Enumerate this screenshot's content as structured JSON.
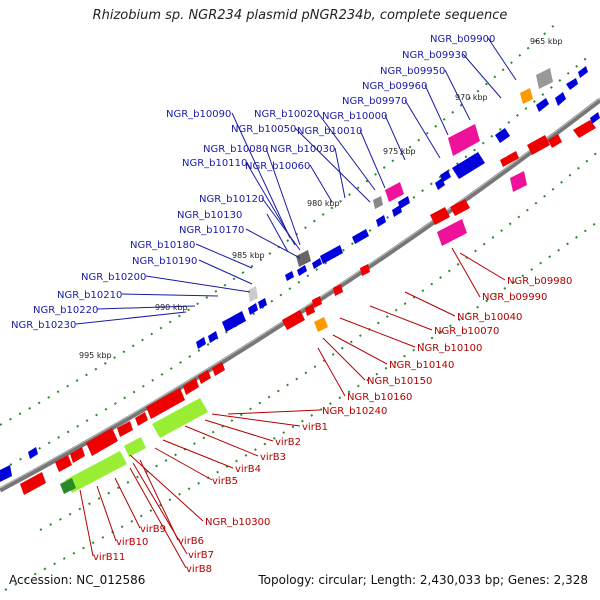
{
  "title": "Rhizobium sp. NGR234 plasmid pNGR234b, complete sequence",
  "footer": {
    "accession": "Accession: NC_012586",
    "summary": "Topology: circular; Length: 2,430,033 bp; Genes: 2,328"
  },
  "scale_ticks": [
    "965 kbp",
    "970 kbp",
    "975 kbp",
    "980 kbp",
    "985 kbp",
    "990 kbp",
    "995 kbp"
  ],
  "upper_labels": [
    "NGR_b09900",
    "NGR_b09930",
    "NGR_b09950",
    "NGR_b09960",
    "NGR_b09970",
    "NGR_b10000",
    "NGR_b10010",
    "NGR_b10020",
    "NGR_b10090",
    "NGR_b10050",
    "NGR_b10030",
    "NGR_b10080",
    "NGR_b10060",
    "NGR_b10110",
    "NGR_b10120",
    "NGR_b10130",
    "NGR_b10170",
    "NGR_b10180",
    "NGR_b10190",
    "NGR_b10200",
    "NGR_b10210",
    "NGR_b10220",
    "NGR_b10230"
  ],
  "lower_labels": [
    "NGR_b09980",
    "NGR_b09990",
    "NGR_b10040",
    "NGR_b10070",
    "NGR_b10100",
    "NGR_b10140",
    "NGR_b10150",
    "NGR_b10160",
    "NGR_b10240",
    "virB1",
    "virB2",
    "virB3",
    "virB4",
    "virB5",
    "NGR_b10300",
    "virB6",
    "virB7",
    "virB8",
    "virB9",
    "virB10",
    "virB11"
  ],
  "colors": {
    "forward_gene": "#0000dd",
    "reverse_gene": "#ee0000",
    "magenta_gene": "#ee1199",
    "lime_gene": "#99ee33",
    "orange_gene": "#ff9900",
    "grey_gene": "#999999",
    "backbone": "#777777",
    "tick": "#2a8a2a",
    "label_blue": "#1a1aa6",
    "label_red": "#b40000"
  }
}
